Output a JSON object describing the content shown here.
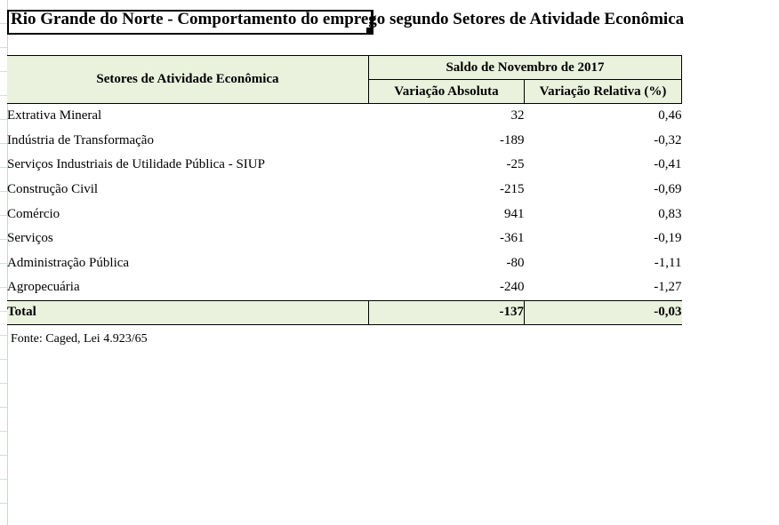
{
  "title": "Rio Grande do Norte - Comportamento do emprego segundo Setores de Atividade Econômica",
  "table": {
    "sector_header": "Setores de Atividade Econômica",
    "period_header": "Saldo de Novembro de 2017",
    "abs_header": "Variação Absoluta",
    "rel_header": "Variação Relativa (%)",
    "rows": [
      {
        "sector": "Extrativa Mineral",
        "abs": "32",
        "rel": "0,46"
      },
      {
        "sector": "Indústria de Transformação",
        "abs": "-189",
        "rel": "-0,32"
      },
      {
        "sector": "Serviços Industriais de Utilidade Pública - SIUP",
        "abs": "-25",
        "rel": "-0,41"
      },
      {
        "sector": "Construção Civil",
        "abs": "-215",
        "rel": "-0,69"
      },
      {
        "sector": "Comércio",
        "abs": "941",
        "rel": "0,83"
      },
      {
        "sector": "Serviços",
        "abs": "-361",
        "rel": "-0,19"
      },
      {
        "sector": "Administração Pública",
        "abs": "-80",
        "rel": "-1,11"
      },
      {
        "sector": "Agropecuária",
        "abs": "-240",
        "rel": "-1,27"
      }
    ],
    "total": {
      "label": "Total",
      "abs": "-137",
      "rel": "-0,03"
    }
  },
  "source": "Fonte: Caged, Lei 4.923/65",
  "colors": {
    "header_fill": "#eaf1dd",
    "border": "#000000"
  }
}
